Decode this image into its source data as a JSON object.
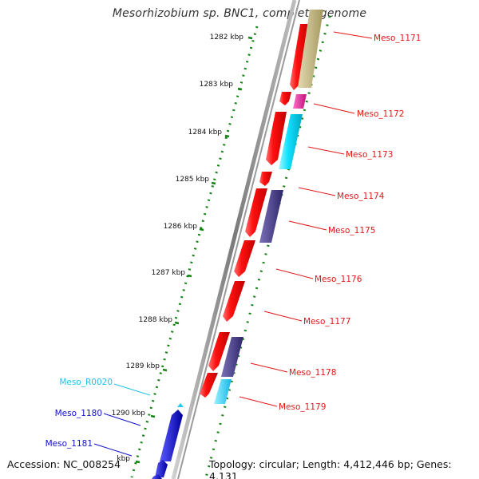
{
  "title": "Mesorhizobium sp. BNC1, complete genome",
  "footer": {
    "accession": "Accession: NC_008254",
    "info": "Topology: circular; Length: 4,412,446 bp; Genes: 4,131"
  },
  "colors": {
    "red": "#ff1a1a",
    "magenta": "#e0158c",
    "cyan": "#00e5ff",
    "slate": "#4b3f8c",
    "khaki": "#c8bd83",
    "blue": "#1010d0",
    "ruler": "#148214",
    "backbone": "#8c8c8c"
  },
  "ruler": [
    {
      "label": "1282 kbp"
    },
    {
      "label": "1283 kbp"
    },
    {
      "label": "1284 kbp"
    },
    {
      "label": "1285 kbp"
    },
    {
      "label": "1286 kbp"
    },
    {
      "label": "1287 kbp"
    },
    {
      "label": "1288 kbp"
    },
    {
      "label": "1289 kbp"
    },
    {
      "label": "1290 kbp"
    },
    {
      "label": "kbp"
    }
  ],
  "genes": [
    {
      "name": "Meso_1171",
      "color": "#e01818"
    },
    {
      "name": "Meso_1172",
      "color": "#e01818"
    },
    {
      "name": "Meso_1173",
      "color": "#e01818"
    },
    {
      "name": "Meso_1174",
      "color": "#e01818"
    },
    {
      "name": "Meso_1175",
      "color": "#e01818"
    },
    {
      "name": "Meso_1176",
      "color": "#e01818"
    },
    {
      "name": "Meso_1177",
      "color": "#e01818"
    },
    {
      "name": "Meso_1178",
      "color": "#e01818"
    },
    {
      "name": "Meso_1179",
      "color": "#e01818"
    },
    {
      "name": "Meso_R0020",
      "color": "#22c0e8"
    },
    {
      "name": "Meso_1180",
      "color": "#1010c8"
    },
    {
      "name": "Meso_1181",
      "color": "#1010c8"
    }
  ]
}
